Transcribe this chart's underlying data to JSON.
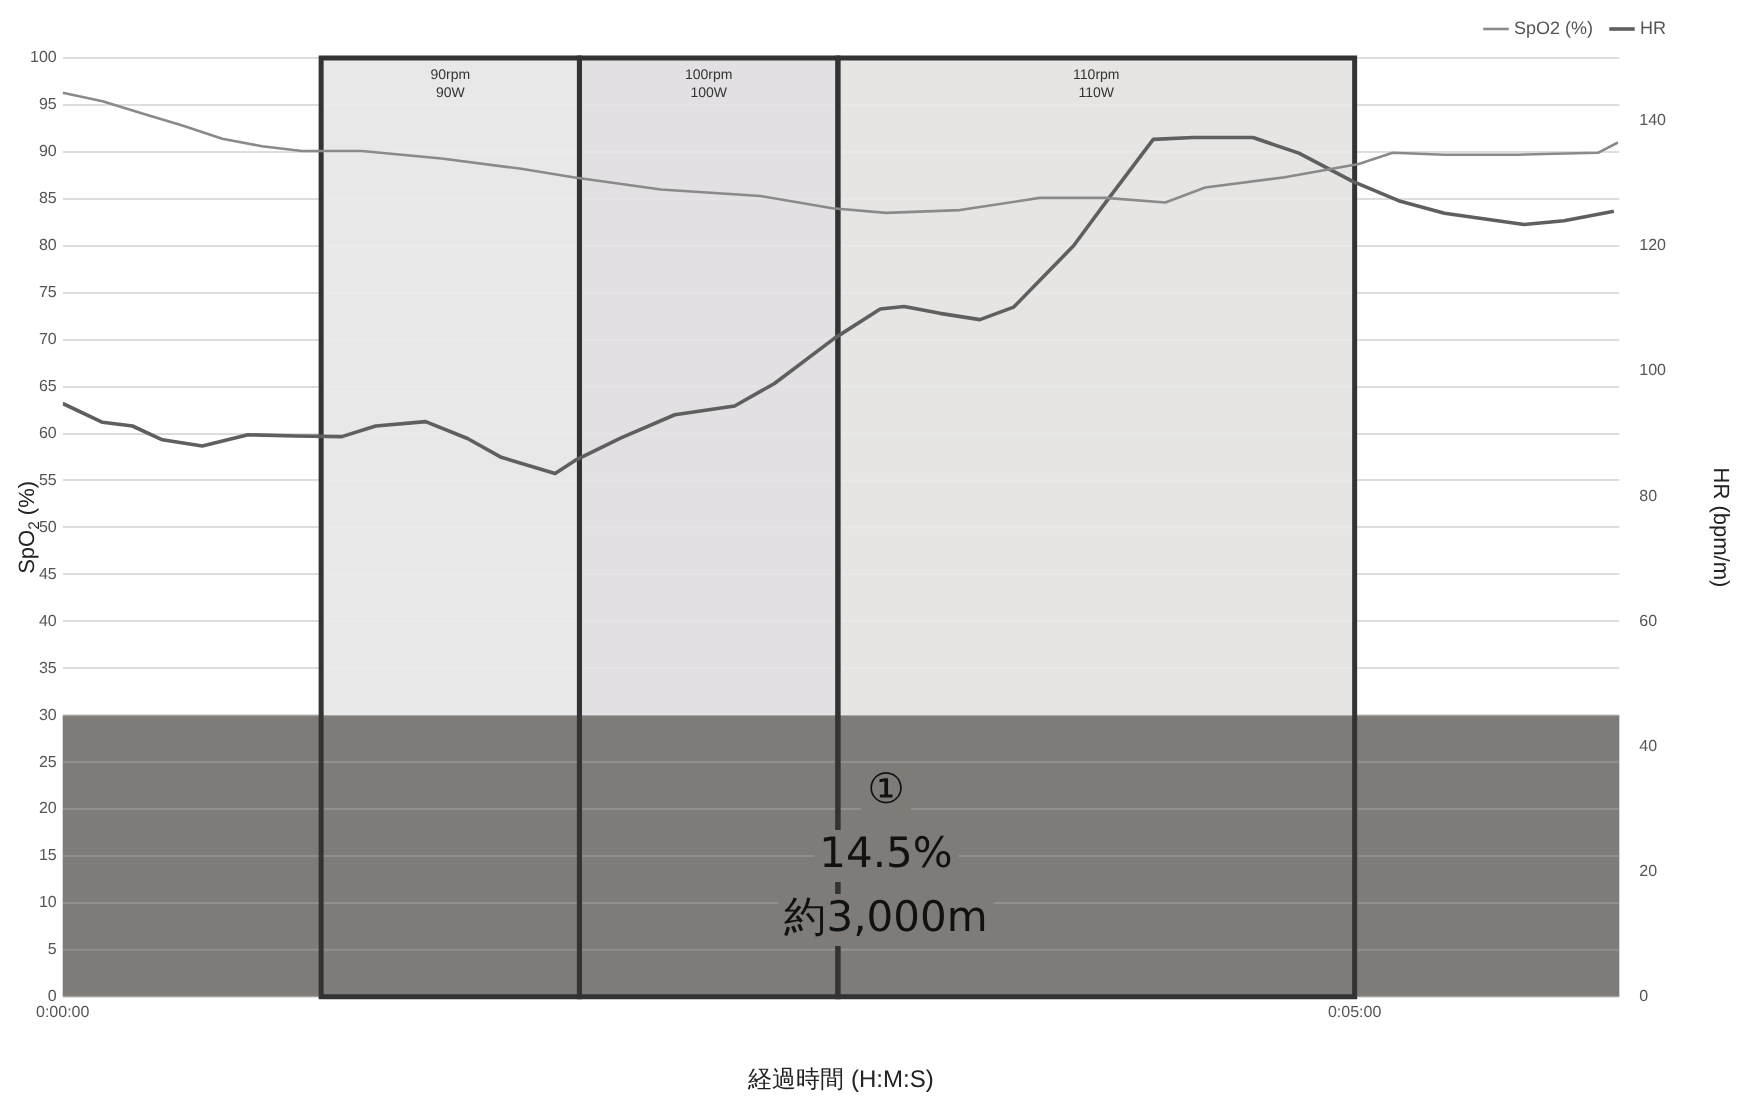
{
  "chart_data": {
    "type": "line",
    "xlabel": "経過時間 (H:M:S)",
    "ylabel": "SpO$_{2}$ (%)",
    "y2label": "HR (bpm/m)",
    "xlim": [
      0,
      0.1004
    ],
    "xticks": [
      {
        "value": 0,
        "label": "0:00:00"
      },
      {
        "value": 0.08333,
        "label": "0:05:00"
      }
    ],
    "ylim": [
      0,
      100
    ],
    "yticks": [
      0,
      5,
      10,
      15,
      20,
      25,
      30,
      35,
      40,
      45,
      50,
      55,
      60,
      65,
      70,
      75,
      80,
      85,
      90,
      95,
      100
    ],
    "y2lim": [
      0,
      150
    ],
    "y2ticks": [
      0,
      20,
      40,
      60,
      80,
      100,
      120,
      140
    ],
    "grid": "y",
    "legend": "top right",
    "marker": "none",
    "line_style": "solid",
    "series": [
      {
        "name": "SpO2 (%)",
        "color": "#8a8a8a",
        "x": [
          0,
          0.00257,
          0.00514,
          0.00772,
          0.01029,
          0.01286,
          0.01543,
          0.01646,
          0.01929,
          0.02443,
          0.02958,
          0.03292,
          0.03858,
          0.04501,
          0.04964,
          0.05311,
          0.05787,
          0.06301,
          0.06726,
          0.07112,
          0.07369,
          0.07883,
          0.08359,
          0.08578,
          0.08912,
          0.09388,
          0.09902,
          0.10031
        ],
        "values": [
          96.3,
          95.4,
          94.1,
          92.8,
          91.4,
          90.6,
          90.1,
          90.1,
          90.1,
          89.3,
          88.2,
          87.3,
          86.0,
          85.3,
          84.0,
          83.5,
          83.8,
          85.1,
          85.1,
          84.6,
          86.2,
          87.3,
          88.7,
          89.9,
          89.7,
          89.7,
          89.9,
          91.0
        ]
      },
      {
        "name": "HR",
        "color": "#5f5f5f",
        "axis": "y2",
        "x": [
          0,
          0.00257,
          0.0045,
          0.00643,
          0.009,
          0.01196,
          0.01505,
          0.018,
          0.02019,
          0.02341,
          0.02611,
          0.02829,
          0.03176,
          0.03305,
          0.03601,
          0.03948,
          0.04334,
          0.04591,
          0.04977,
          0.05273,
          0.05427,
          0.05658,
          0.05916,
          0.06134,
          0.0652,
          0.06726,
          0.07034,
          0.07292,
          0.07677,
          0.07973,
          0.0832,
          0.08616,
          0.08912,
          0.09426,
          0.09684,
          0.10005
        ],
        "values": [
          94.8,
          91.8,
          91.2,
          89.0,
          88.0,
          89.8,
          89.6,
          89.5,
          91.2,
          91.9,
          89.2,
          86.2,
          83.6,
          85.7,
          89.3,
          93.0,
          94.4,
          98.0,
          105.2,
          109.9,
          110.3,
          109.2,
          108.2,
          110.2,
          120.0,
          126.9,
          137.0,
          137.3,
          137.3,
          134.8,
          130.3,
          127.2,
          125.2,
          123.4,
          124.0,
          125.5
        ]
      }
    ],
    "bands": [
      {
        "axis": "x",
        "from": 0.01667,
        "to": 0.03333,
        "label": "90rpm\n90W",
        "color": "#e8e8e8"
      },
      {
        "axis": "x",
        "from": 0.03333,
        "to": 0.05,
        "label": "100rpm\n100W",
        "color": "#e2e0e2"
      },
      {
        "axis": "x",
        "from": 0.05,
        "to": 0.08333,
        "label": "110rpm\n110W",
        "color": "#e6e5e4"
      },
      {
        "axis": "y",
        "from": 0,
        "to": 30,
        "color": "#7f7b78"
      }
    ],
    "annotations": [
      "①",
      "14.5%",
      "約3,000m"
    ]
  }
}
